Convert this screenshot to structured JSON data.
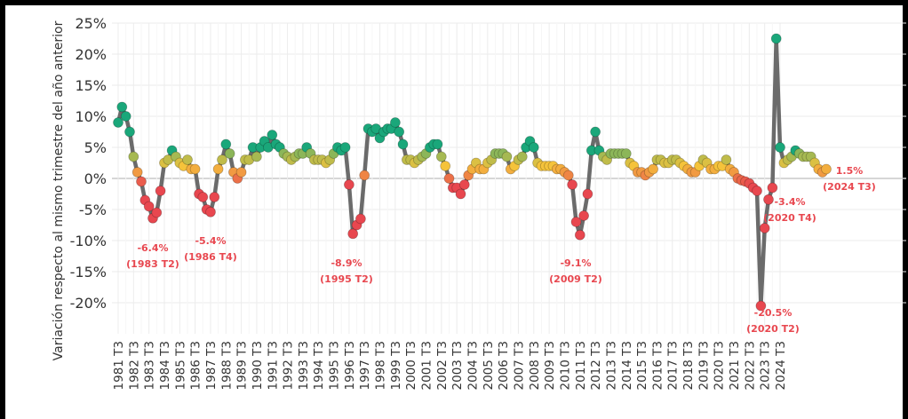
{
  "chart_data": {
    "type": "line",
    "title": "",
    "xlabel": "",
    "ylabel": "Variación respecto al mismo trimestre del año anterior",
    "ylim": [
      -25,
      25
    ],
    "y_ticks": [
      "-20%",
      "-15%",
      "-10%",
      "-5%",
      "0%",
      "5%",
      "10%",
      "15%",
      "20%",
      "25%"
    ],
    "y_tick_values": [
      -20,
      -15,
      -10,
      -5,
      0,
      5,
      10,
      15,
      20,
      25
    ],
    "x_tick_labels": [
      "1981 T3",
      "1982 T3",
      "1983 T3",
      "1984 T3",
      "1985 T3",
      "1986 T3",
      "1987 T3",
      "1988 T3",
      "1989 T3",
      "1990 T3",
      "1991 T3",
      "1992 T3",
      "1993 T3",
      "1994 T3",
      "1995 T3",
      "1996 T3",
      "1997 T3",
      "1998 T3",
      "1999 T3",
      "2000 T3",
      "2001 T3",
      "2002 T3",
      "2003 T3",
      "2004 T3",
      "2005 T3",
      "2006 T3",
      "2007 T3",
      "2008 T3",
      "2009 T3",
      "2010 T3",
      "2011 T3",
      "2012 T3",
      "2013 T3",
      "2014 T3",
      "2015 T3",
      "2016 T3",
      "2017 T3",
      "2018 T3",
      "2019 T3",
      "2020 T3",
      "2021 T3",
      "2022 T3",
      "2023 T3",
      "2024 T3"
    ],
    "grid": true,
    "line_color": "#6b6b6b",
    "point_colors": {
      "low": "#e8474f",
      "mid": "#f5c33b",
      "high": "#1aa77a"
    },
    "series": [
      {
        "values": [
          9,
          11.5,
          10,
          7.5,
          3.5,
          1,
          -0.5,
          -3.5,
          -4.5,
          -6.4,
          -5.5,
          -2,
          2.5,
          3,
          4.5,
          3.5,
          2.5,
          2,
          3,
          1.5,
          1.5,
          -2.5,
          -3,
          -5,
          -5.4,
          -3,
          1.5,
          3,
          5.5,
          4,
          1,
          0,
          1,
          3,
          3,
          5,
          3.5,
          5,
          6,
          5,
          7,
          5.5,
          5,
          4,
          3.5,
          3,
          3.5,
          4,
          4,
          5,
          4,
          3,
          3,
          3,
          2.5,
          3,
          4,
          5,
          4.5,
          5,
          -1,
          -8.9,
          -7.5,
          -6.5,
          0.5,
          8,
          7.5,
          8,
          6.5,
          7.5,
          8,
          8,
          9,
          7.5,
          5.5,
          3,
          3,
          2.5,
          3,
          3.5,
          4,
          5,
          5.5,
          5.5,
          3.5,
          2,
          0,
          -1.5,
          -1.5,
          -2.5,
          -1,
          0.5,
          1.5,
          2.5,
          1.5,
          1.5,
          2.5,
          3,
          4,
          4,
          4,
          3.5,
          1.5,
          2,
          3,
          3.5,
          5,
          6,
          5,
          2.5,
          2,
          2,
          2,
          2,
          1.5,
          1.5,
          1,
          0.5,
          -1,
          -7,
          -9.1,
          -6,
          -2.5,
          4.5,
          7.5,
          4.5,
          3.5,
          3,
          4,
          4,
          4,
          4,
          4,
          2.5,
          2,
          1,
          1,
          0.5,
          1,
          1.5,
          3,
          3,
          2.5,
          2.5,
          3,
          3,
          2.5,
          2,
          1.5,
          1,
          1,
          2,
          3,
          2.5,
          1.5,
          1.5,
          2,
          2,
          3,
          1.5,
          1,
          0,
          -0.3,
          -0.5,
          -0.8,
          -1.5,
          -2,
          -20.5,
          -8,
          -3.4,
          -1.5,
          22.5,
          5,
          2.5,
          3,
          3.5,
          4.5,
          4,
          3.5,
          3.5,
          3.5,
          2.5,
          1.5,
          1,
          1.5
        ]
      }
    ],
    "annotations": [
      {
        "value": "-6.4%",
        "period": "(1983 T2)"
      },
      {
        "value": "-5.4%",
        "period": "(1986 T4)"
      },
      {
        "value": "-8.9%",
        "period": "(1995 T2)"
      },
      {
        "value": "-9.1%",
        "period": "(2009 T2)"
      },
      {
        "value": "-20.5%",
        "period": "(2020 T2)"
      },
      {
        "value": "-3.4%",
        "period": "(2020 T4)"
      },
      {
        "value": "1.5%",
        "period": "(2024 T3)"
      }
    ]
  }
}
